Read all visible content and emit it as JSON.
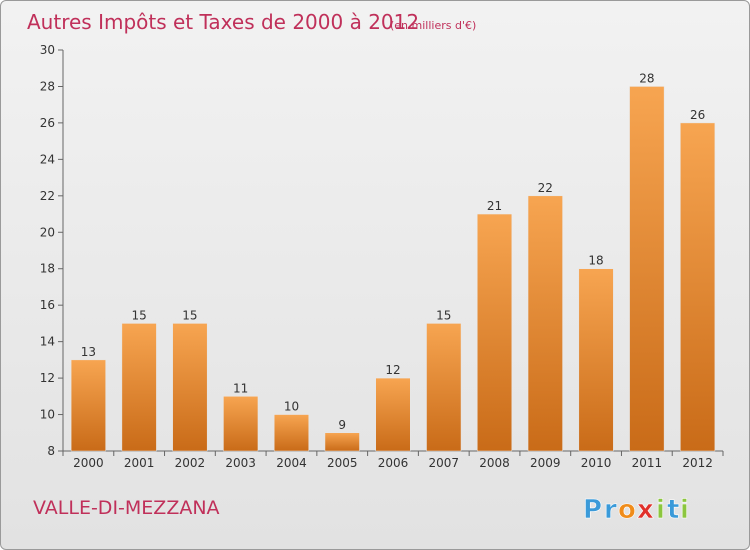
{
  "chart_data": {
    "type": "bar",
    "title": "Autres Impôts et Taxes de 2000 à 2012",
    "subtitle": "(en milliers d'€)",
    "categories": [
      "2000",
      "2001",
      "2002",
      "2003",
      "2004",
      "2005",
      "2006",
      "2007",
      "2008",
      "2009",
      "2010",
      "2011",
      "2012"
    ],
    "values": [
      13,
      15,
      15,
      11,
      10,
      9,
      12,
      15,
      21,
      22,
      18,
      28,
      26
    ],
    "value_labels": [
      "13",
      "15",
      "15",
      "11",
      "10",
      "9",
      "12",
      "15",
      "21",
      "22",
      "18",
      "28",
      "26"
    ],
    "xlabel": "",
    "ylabel": "",
    "ylim": [
      8,
      30
    ],
    "yticks": [
      "8",
      "10",
      "12",
      "14",
      "16",
      "18",
      "20",
      "22",
      "24",
      "26",
      "28",
      "30"
    ],
    "grid": false,
    "bar_color": "#f0a050"
  },
  "commune_name": "VALLE-DI-MEZZANA",
  "logo": {
    "letters": [
      "P",
      "r",
      "o",
      "x",
      "i",
      "t",
      "i"
    ],
    "colors": [
      "#3a9ad9",
      "#3a9ad9",
      "#f08c1a",
      "#e0302a",
      "#8cc63f",
      "#3a9ad9",
      "#8cc63f"
    ]
  }
}
